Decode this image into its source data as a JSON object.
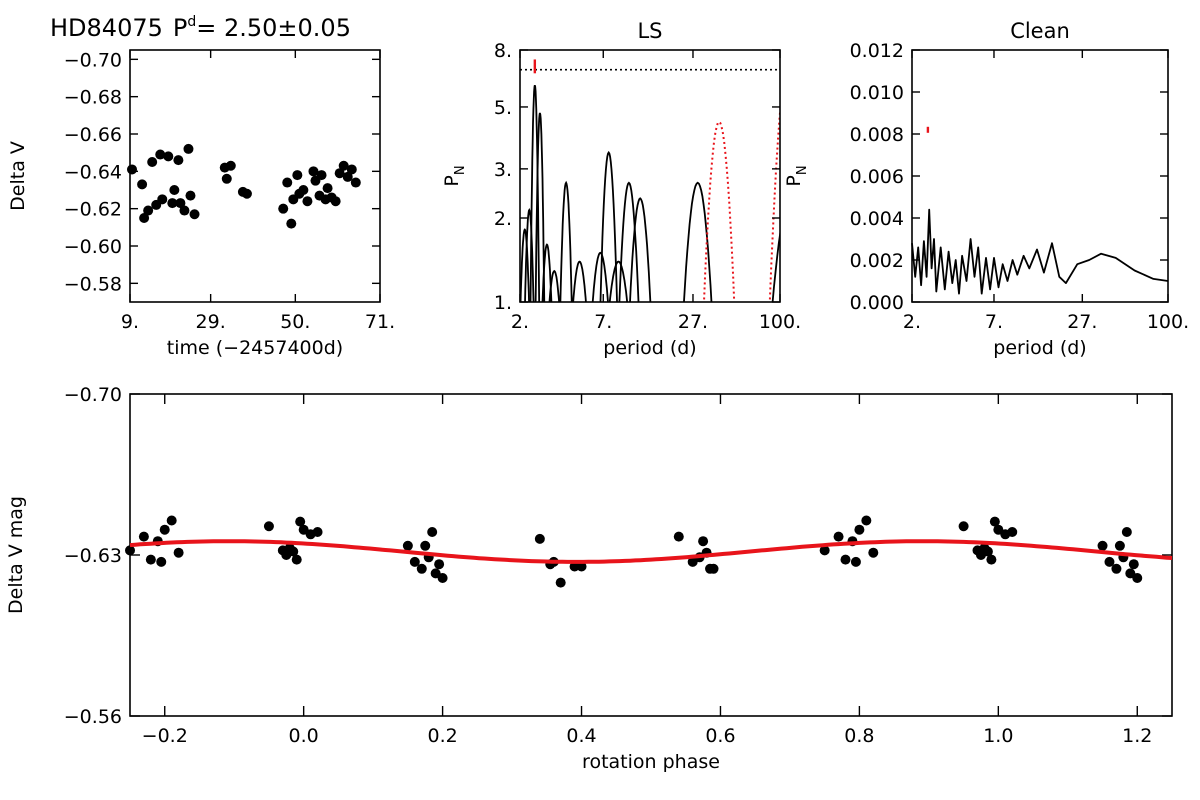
{
  "header": {
    "star": "HD84075",
    "period_label": "P",
    "period_sup": "d",
    "period_value": "= 2.50±0.05"
  },
  "colors": {
    "data": "#000000",
    "fit": "#e8141b",
    "ls_window": "#e8141b",
    "marker": "#e8141b"
  },
  "chart_data": [
    {
      "id": "lightcurve",
      "type": "scatter",
      "title": "",
      "xlabel": "time (−2457400d)",
      "ylabel": "Delta V",
      "xlim": [
        9,
        71
      ],
      "ylim": [
        -0.57,
        -0.705
      ],
      "xticks": [
        "9.",
        "29.",
        "50.",
        "71."
      ],
      "xtick_values": [
        9,
        29,
        50,
        71
      ],
      "yticks": [
        "−0.70",
        "−0.68",
        "−0.66",
        "−0.64",
        "−0.62",
        "−0.60",
        "−0.58"
      ],
      "ytick_values": [
        -0.7,
        -0.68,
        -0.66,
        -0.64,
        -0.62,
        -0.6,
        -0.58
      ],
      "points": [
        [
          9.5,
          -0.641
        ],
        [
          12.0,
          -0.633
        ],
        [
          12.5,
          -0.615
        ],
        [
          13.5,
          -0.619
        ],
        [
          14.5,
          -0.645
        ],
        [
          15.5,
          -0.622
        ],
        [
          16.5,
          -0.649
        ],
        [
          17.0,
          -0.625
        ],
        [
          18.5,
          -0.648
        ],
        [
          19.5,
          -0.623
        ],
        [
          20.0,
          -0.63
        ],
        [
          21.0,
          -0.646
        ],
        [
          21.5,
          -0.623
        ],
        [
          22.5,
          -0.619
        ],
        [
          23.5,
          -0.652
        ],
        [
          24.0,
          -0.627
        ],
        [
          25.0,
          -0.617
        ],
        [
          32.5,
          -0.642
        ],
        [
          33.0,
          -0.636
        ],
        [
          34.0,
          -0.643
        ],
        [
          37.0,
          -0.629
        ],
        [
          38.0,
          -0.628
        ],
        [
          47.0,
          -0.62
        ],
        [
          48.0,
          -0.634
        ],
        [
          49.0,
          -0.612
        ],
        [
          49.5,
          -0.625
        ],
        [
          50.5,
          -0.638
        ],
        [
          51.0,
          -0.628
        ],
        [
          52.0,
          -0.63
        ],
        [
          53.0,
          -0.624
        ],
        [
          54.5,
          -0.64
        ],
        [
          55.0,
          -0.635
        ],
        [
          56.0,
          -0.627
        ],
        [
          56.5,
          -0.638
        ],
        [
          57.5,
          -0.625
        ],
        [
          58.0,
          -0.631
        ],
        [
          59.0,
          -0.626
        ],
        [
          60.0,
          -0.624
        ],
        [
          61.0,
          -0.639
        ],
        [
          62.0,
          -0.643
        ],
        [
          63.0,
          -0.637
        ],
        [
          64.0,
          -0.641
        ],
        [
          65.0,
          -0.634
        ]
      ]
    },
    {
      "id": "ls_periodogram",
      "type": "line",
      "title": "LS",
      "xlabel": "period (d)",
      "ylabel": "P",
      "ylabel_sub": "N",
      "xscale": "log",
      "yscale": "log",
      "xlim": [
        2,
        100
      ],
      "ylim": [
        1,
        8
      ],
      "xticks": [
        "2.",
        "7.",
        "27.",
        "100."
      ],
      "xtick_values": [
        2,
        7,
        27,
        100
      ],
      "yticks": [
        "1.",
        "2.",
        "3.",
        "5.",
        "8."
      ],
      "ytick_values": [
        1,
        2,
        3,
        5,
        8
      ],
      "threshold": 6.8,
      "peak_marker_period": 2.5,
      "series": [
        {
          "style": "solid",
          "color": "black",
          "peaks": [
            [
              2.15,
              1.8
            ],
            [
              2.3,
              2.1
            ],
            [
              2.5,
              5.6
            ],
            [
              2.7,
              4.5
            ],
            [
              3.0,
              1.6
            ],
            [
              3.35,
              1.3
            ],
            [
              4.0,
              2.6
            ],
            [
              4.9,
              1.4
            ],
            [
              6.7,
              1.5
            ],
            [
              7.6,
              3.3
            ],
            [
              8.8,
              1.4
            ],
            [
              10.3,
              2.6
            ],
            [
              12.2,
              2.3
            ],
            [
              29.0,
              2.6
            ],
            [
              120,
              2.4
            ]
          ]
        },
        {
          "style": "dotted",
          "color": "red",
          "peaks": [
            [
              40.0,
              4.2
            ],
            [
              115,
              7.0
            ]
          ]
        }
      ]
    },
    {
      "id": "clean_periodogram",
      "type": "line",
      "title": "Clean",
      "xlabel": "period (d)",
      "ylabel": "P",
      "ylabel_sub": "N",
      "xscale": "log",
      "xlim": [
        2,
        100
      ],
      "ylim": [
        0,
        0.012
      ],
      "xticks": [
        "2.",
        "7.",
        "27.",
        "100."
      ],
      "xtick_values": [
        2,
        7,
        27,
        100
      ],
      "yticks": [
        "0.000",
        "0.002",
        "0.004",
        "0.006",
        "0.008",
        "0.010",
        "0.012"
      ],
      "ytick_values": [
        0,
        0.002,
        0.004,
        0.006,
        0.008,
        0.01,
        0.012
      ],
      "peak_marker": [
        2.55,
        0.0082
      ],
      "series": [
        {
          "style": "solid",
          "color": "black",
          "points": [
            [
              2.0,
              0.0028
            ],
            [
              2.1,
              0.0012
            ],
            [
              2.2,
              0.0026
            ],
            [
              2.3,
              0.0008
            ],
            [
              2.4,
              0.0029
            ],
            [
              2.5,
              0.0012
            ],
            [
              2.6,
              0.0044
            ],
            [
              2.7,
              0.0016
            ],
            [
              2.8,
              0.003
            ],
            [
              2.9,
              0.0005
            ],
            [
              3.1,
              0.0026
            ],
            [
              3.3,
              0.0006
            ],
            [
              3.5,
              0.0024
            ],
            [
              3.7,
              0.0009
            ],
            [
              3.9,
              0.002
            ],
            [
              4.1,
              0.0004
            ],
            [
              4.3,
              0.0022
            ],
            [
              4.6,
              0.001
            ],
            [
              4.9,
              0.003
            ],
            [
              5.2,
              0.0012
            ],
            [
              5.5,
              0.0026
            ],
            [
              5.8,
              0.0004
            ],
            [
              6.2,
              0.0021
            ],
            [
              6.6,
              0.0006
            ],
            [
              7.0,
              0.0021
            ],
            [
              7.5,
              0.0007
            ],
            [
              8.0,
              0.0018
            ],
            [
              8.6,
              0.001
            ],
            [
              9.3,
              0.002
            ],
            [
              10.0,
              0.0013
            ],
            [
              11.0,
              0.0022
            ],
            [
              12.0,
              0.0016
            ],
            [
              13.5,
              0.0025
            ],
            [
              15.0,
              0.0014
            ],
            [
              17.0,
              0.0028
            ],
            [
              19.0,
              0.0012
            ],
            [
              21.0,
              0.0009
            ],
            [
              25.0,
              0.0018
            ],
            [
              30.0,
              0.002
            ],
            [
              36.0,
              0.0023
            ],
            [
              45.0,
              0.0021
            ],
            [
              60.0,
              0.0015
            ],
            [
              80.0,
              0.0011
            ],
            [
              100.0,
              0.001
            ]
          ]
        }
      ]
    },
    {
      "id": "phased",
      "type": "scatter",
      "title": "",
      "xlabel": "rotation phase",
      "ylabel": "Delta V mag",
      "xlim": [
        -0.25,
        1.25
      ],
      "ylim": [
        -0.56,
        -0.7
      ],
      "xticks": [
        "−0.2",
        "0.0",
        "0.2",
        "0.4",
        "0.6",
        "0.8",
        "1.0",
        "1.2"
      ],
      "xtick_values": [
        -0.2,
        0.0,
        0.2,
        0.4,
        0.6,
        0.8,
        1.0,
        1.2
      ],
      "yticks": [
        "−0.70",
        "−0.63",
        "−0.56"
      ],
      "ytick_values": [
        -0.7,
        -0.63,
        -0.56
      ],
      "fit": {
        "mean": -0.6315,
        "amplitude": 0.0045,
        "peak_phase": 0.892,
        "color": "red"
      },
      "points": [
        [
          -0.05,
          -0.6425
        ],
        [
          -0.03,
          -0.632
        ],
        [
          -0.025,
          -0.63
        ],
        [
          -0.02,
          -0.633
        ],
        [
          -0.015,
          -0.6315
        ],
        [
          -0.01,
          -0.628
        ],
        [
          -0.005,
          -0.6445
        ],
        [
          0.0,
          -0.641
        ],
        [
          0.01,
          -0.639
        ],
        [
          0.02,
          -0.64
        ],
        [
          0.15,
          -0.634
        ],
        [
          0.16,
          -0.627
        ],
        [
          0.17,
          -0.624
        ],
        [
          0.175,
          -0.634
        ],
        [
          0.18,
          -0.629
        ],
        [
          0.185,
          -0.64
        ],
        [
          0.19,
          -0.622
        ],
        [
          0.195,
          -0.626
        ],
        [
          0.2,
          -0.62
        ],
        [
          0.34,
          -0.637
        ],
        [
          0.355,
          -0.626
        ],
        [
          0.36,
          -0.627
        ],
        [
          0.37,
          -0.618
        ],
        [
          0.39,
          -0.625
        ],
        [
          0.4,
          -0.625
        ],
        [
          0.54,
          -0.638
        ],
        [
          0.56,
          -0.627
        ],
        [
          0.57,
          -0.629
        ],
        [
          0.575,
          -0.636
        ],
        [
          0.58,
          -0.631
        ],
        [
          0.585,
          -0.624
        ],
        [
          0.59,
          -0.624
        ],
        [
          0.75,
          -0.632
        ],
        [
          0.77,
          -0.638
        ],
        [
          0.78,
          -0.628
        ],
        [
          0.79,
          -0.636
        ],
        [
          0.795,
          -0.627
        ],
        [
          0.8,
          -0.641
        ],
        [
          0.81,
          -0.645
        ],
        [
          0.82,
          -0.631
        ]
      ]
    }
  ]
}
